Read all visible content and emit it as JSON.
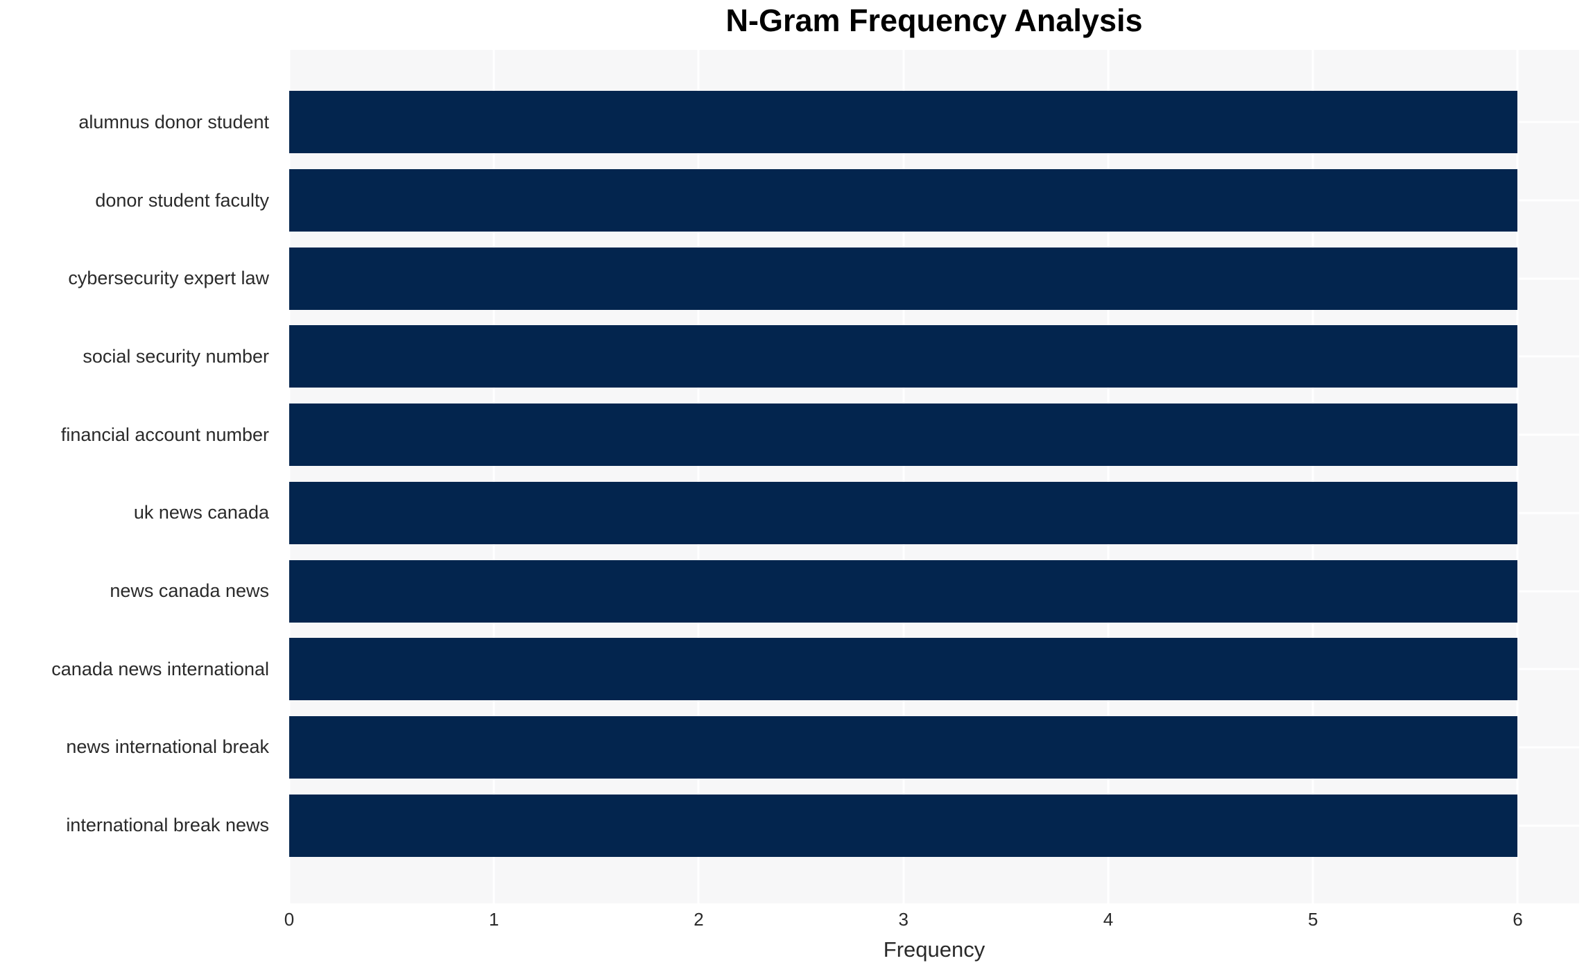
{
  "chart_data": {
    "type": "bar",
    "orientation": "horizontal",
    "title": "N-Gram Frequency Analysis",
    "xlabel": "Frequency",
    "ylabel": "",
    "categories": [
      "alumnus donor student",
      "donor student faculty",
      "cybersecurity expert law",
      "social security number",
      "financial account number",
      "uk news canada",
      "news canada news",
      "canada news international",
      "news international break",
      "international break news"
    ],
    "values": [
      6,
      6,
      6,
      6,
      6,
      6,
      6,
      6,
      6,
      6
    ],
    "xticks": [
      0,
      1,
      2,
      3,
      4,
      5,
      6
    ],
    "xlim": [
      0,
      6.3
    ],
    "grid": true,
    "legend": false,
    "colors": {
      "bar": "#03254e",
      "plot_background": "#f7f7f8",
      "gridline": "#ffffff",
      "tick_text": "#2a2a2a",
      "title_text": "#000000"
    }
  }
}
